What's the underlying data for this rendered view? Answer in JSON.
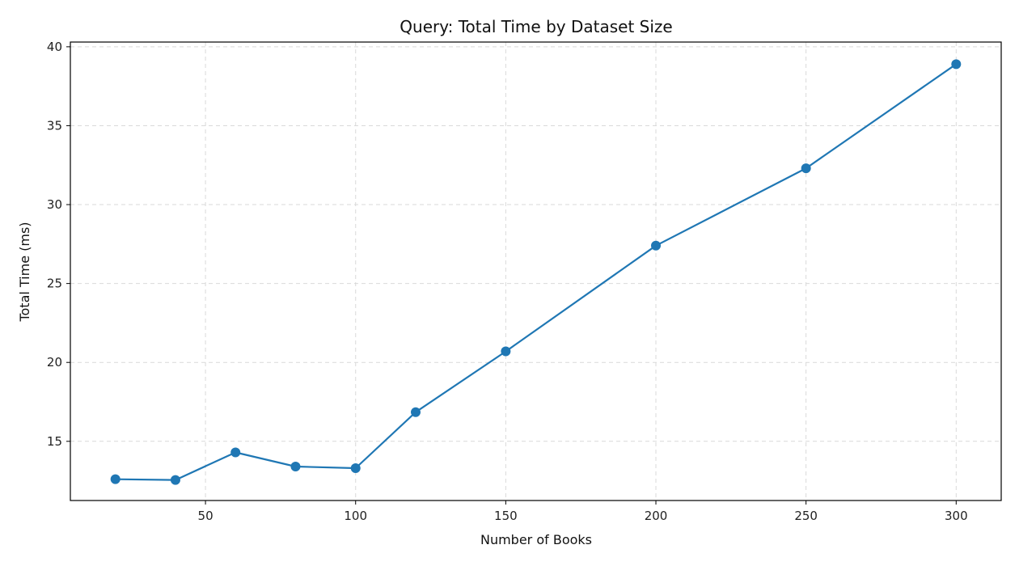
{
  "chart_data": {
    "type": "line",
    "title": "Query: Total Time by Dataset Size",
    "xlabel": "Number of Books",
    "ylabel": "Total Time (ms)",
    "xlim": [
      5,
      315
    ],
    "ylim": [
      11.25,
      40.3
    ],
    "xticks": [
      50,
      100,
      150,
      200,
      250,
      300
    ],
    "yticks": [
      15,
      20,
      25,
      30,
      35,
      40
    ],
    "grid": true,
    "series": [
      {
        "color": "#1f77b4",
        "x": [
          20,
          40,
          60,
          80,
          100,
          120,
          150,
          200,
          250,
          300
        ],
        "y": [
          12.6,
          12.55,
          14.3,
          13.4,
          13.3,
          16.85,
          20.7,
          27.4,
          32.3,
          38.9
        ]
      }
    ]
  }
}
